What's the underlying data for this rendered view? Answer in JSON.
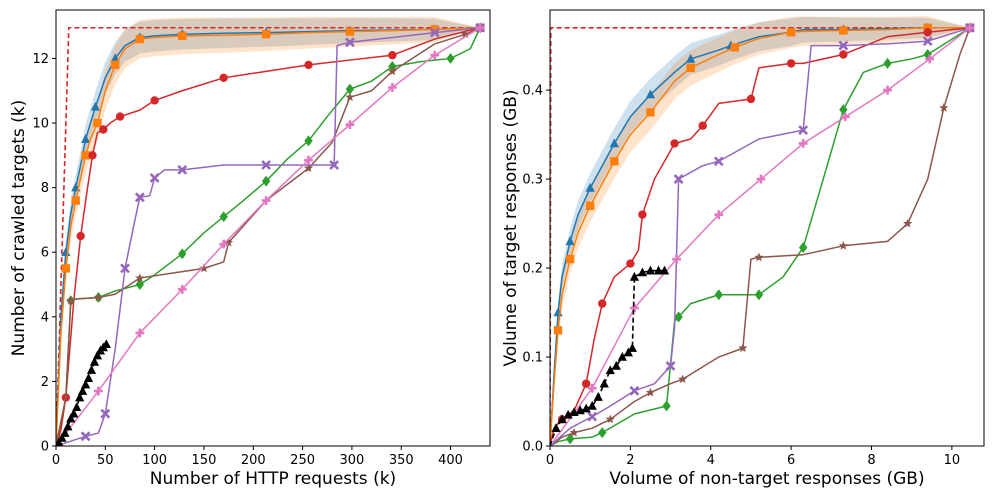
{
  "chart_data": [
    {
      "type": "line",
      "xlabel": "Number of HTTP requests (k)",
      "ylabel": "Number of crawled targets (k)",
      "xlim": [
        0,
        440
      ],
      "ylim": [
        0,
        13.5
      ],
      "xticks": [
        "0",
        "50",
        "100",
        "150",
        "200",
        "250",
        "300",
        "350",
        "400"
      ],
      "xtick_values": [
        0,
        50,
        100,
        150,
        200,
        250,
        300,
        350,
        400
      ],
      "yticks": [
        "0",
        "2",
        "4",
        "6",
        "8",
        "10",
        "12"
      ],
      "ytick_values": [
        0,
        2,
        4,
        6,
        8,
        10,
        12
      ],
      "grid": false,
      "series": [
        {
          "color": "#d62728",
          "style": "dashed",
          "marker": "none",
          "x": [
            0,
            13,
            430
          ],
          "y": [
            0,
            12.95,
            12.95
          ]
        },
        {
          "color": "#1f77b4",
          "style": "solid",
          "marker": "triangle-up",
          "band": [
            0.3,
            0.5
          ],
          "x": [
            0,
            5,
            10,
            15,
            20,
            25,
            30,
            35,
            40,
            50,
            60,
            70,
            85,
            100,
            128,
            170,
            213,
            256,
            298,
            341,
            384,
            430
          ],
          "y": [
            0,
            4.0,
            6.0,
            7.2,
            8.0,
            8.7,
            9.5,
            10.0,
            10.5,
            11.4,
            12.0,
            12.4,
            12.65,
            12.7,
            12.75,
            12.78,
            12.8,
            12.83,
            12.86,
            12.88,
            12.9,
            12.95
          ]
        },
        {
          "color": "#ff7f0e",
          "style": "solid",
          "marker": "square",
          "band": [
            0.35,
            0.6
          ],
          "x": [
            0,
            5,
            10,
            15,
            20,
            25,
            30,
            35,
            42,
            50,
            60,
            70,
            85,
            100,
            128,
            170,
            213,
            256,
            298,
            341,
            384,
            430
          ],
          "y": [
            0,
            3.5,
            5.5,
            6.8,
            7.6,
            8.3,
            9.0,
            9.5,
            10.0,
            11.0,
            11.8,
            12.3,
            12.6,
            12.65,
            12.7,
            12.72,
            12.75,
            12.8,
            12.83,
            12.86,
            12.9,
            12.95
          ]
        },
        {
          "color": "#d62728",
          "style": "solid",
          "marker": "circle",
          "x": [
            0,
            5,
            10,
            18,
            25,
            32,
            37,
            42,
            48,
            55,
            65,
            85,
            100,
            128,
            170,
            213,
            256,
            298,
            341,
            384,
            430
          ],
          "y": [
            0,
            0.5,
            1.5,
            4.5,
            6.5,
            8.0,
            9.0,
            9.7,
            9.8,
            10.0,
            10.2,
            10.4,
            10.7,
            11.0,
            11.4,
            11.6,
            11.8,
            11.95,
            12.1,
            12.6,
            12.95
          ]
        },
        {
          "color": "#2ca02c",
          "style": "solid",
          "marker": "diamond",
          "x": [
            0,
            10,
            15,
            20,
            43,
            60,
            85,
            100,
            128,
            150,
            170,
            190,
            213,
            235,
            256,
            275,
            298,
            320,
            341,
            370,
            400,
            420,
            430
          ],
          "y": [
            0,
            1.5,
            4.5,
            4.55,
            4.6,
            4.8,
            5.0,
            5.3,
            5.95,
            6.6,
            7.1,
            7.6,
            8.2,
            8.9,
            9.45,
            10.2,
            11.05,
            11.3,
            11.75,
            11.9,
            12.0,
            12.3,
            12.95
          ]
        },
        {
          "color": "#8c564b",
          "style": "solid",
          "marker": "star",
          "x": [
            0,
            10,
            15,
            20,
            43,
            60,
            85,
            128,
            150,
            170,
            175,
            213,
            256,
            280,
            298,
            320,
            341,
            384,
            415,
            430
          ],
          "y": [
            0,
            1.5,
            4.5,
            4.55,
            4.6,
            4.7,
            5.2,
            5.4,
            5.5,
            5.7,
            6.3,
            7.6,
            8.6,
            9.4,
            10.8,
            11.0,
            11.6,
            12.45,
            12.75,
            12.95
          ]
        },
        {
          "color": "#9467bd",
          "style": "solid",
          "marker": "x",
          "x": [
            0,
            20,
            30,
            43,
            50,
            60,
            70,
            80,
            85,
            95,
            100,
            110,
            128,
            170,
            213,
            256,
            282,
            285,
            298,
            341,
            384,
            430
          ],
          "y": [
            0,
            0.2,
            0.3,
            0.4,
            1.0,
            3.0,
            5.5,
            7.0,
            7.7,
            7.75,
            8.3,
            8.55,
            8.55,
            8.7,
            8.7,
            8.7,
            8.7,
            12.4,
            12.5,
            12.65,
            12.8,
            12.95
          ]
        },
        {
          "color": "#e377c2",
          "style": "solid",
          "marker": "plus",
          "x": [
            0,
            43,
            85,
            128,
            170,
            213,
            256,
            298,
            341,
            384,
            430
          ],
          "y": [
            0,
            1.7,
            3.5,
            4.85,
            6.25,
            7.6,
            8.85,
            9.95,
            11.1,
            12.1,
            12.95
          ]
        },
        {
          "color": "#000000",
          "style": "dashed",
          "marker": "triangle-up",
          "x": [
            0,
            3,
            6,
            9,
            12,
            15,
            18,
            21,
            24,
            27,
            30,
            33,
            36,
            39,
            42,
            45,
            48,
            51
          ],
          "y": [
            0,
            0.1,
            0.25,
            0.4,
            0.6,
            0.85,
            1.0,
            1.2,
            1.5,
            1.7,
            1.9,
            2.1,
            2.35,
            2.6,
            2.8,
            2.95,
            3.05,
            3.15
          ]
        }
      ]
    },
    {
      "type": "line",
      "xlabel": "Volume of non-target responses (GB)",
      "ylabel": "Volume of target responses (GB)",
      "xlim": [
        0,
        10.8
      ],
      "ylim": [
        0,
        0.49
      ],
      "xticks": [
        "0",
        "2",
        "4",
        "6",
        "8",
        "10"
      ],
      "xtick_values": [
        0,
        2,
        4,
        6,
        8,
        10
      ],
      "yticks": [
        "0.0",
        "0.1",
        "0.2",
        "0.3",
        "0.4"
      ],
      "ytick_values": [
        0,
        0.1,
        0.2,
        0.3,
        0.4
      ],
      "grid": false,
      "series": [
        {
          "color": "#d62728",
          "style": "dashed",
          "marker": "none",
          "x": [
            0,
            0.02,
            10.45
          ],
          "y": [
            0,
            0.47,
            0.47
          ]
        },
        {
          "color": "#1f77b4",
          "style": "solid",
          "marker": "triangle-up",
          "band": [
            0.01,
            0.018
          ],
          "x": [
            0,
            0.1,
            0.2,
            0.3,
            0.5,
            0.7,
            1.0,
            1.3,
            1.6,
            2.0,
            2.5,
            3.1,
            3.5,
            4.2,
            4.5,
            5.2,
            6.0,
            6.3,
            7.3,
            8.4,
            9.4,
            10.45
          ],
          "y": [
            0,
            0.08,
            0.15,
            0.19,
            0.23,
            0.26,
            0.29,
            0.315,
            0.34,
            0.37,
            0.395,
            0.42,
            0.435,
            0.445,
            0.45,
            0.46,
            0.465,
            0.468,
            0.468,
            0.469,
            0.47,
            0.47
          ]
        },
        {
          "color": "#ff7f0e",
          "style": "solid",
          "marker": "square",
          "band": [
            0.012,
            0.02
          ],
          "x": [
            0,
            0.1,
            0.2,
            0.3,
            0.5,
            0.7,
            1.0,
            1.3,
            1.6,
            2.0,
            2.5,
            3.1,
            3.5,
            4.2,
            4.6,
            5.2,
            6.0,
            6.3,
            7.3,
            8.4,
            9.4,
            10.45
          ],
          "y": [
            0,
            0.07,
            0.13,
            0.17,
            0.21,
            0.24,
            0.27,
            0.295,
            0.32,
            0.35,
            0.375,
            0.41,
            0.425,
            0.44,
            0.448,
            0.458,
            0.465,
            0.466,
            0.467,
            0.468,
            0.47,
            0.47
          ]
        },
        {
          "color": "#d62728",
          "style": "solid",
          "marker": "circle",
          "x": [
            0,
            0.1,
            0.3,
            0.6,
            0.9,
            1.1,
            1.3,
            1.6,
            2.0,
            2.2,
            2.3,
            2.6,
            3.1,
            3.5,
            3.8,
            4.2,
            5.0,
            5.2,
            6.0,
            6.3,
            7.3,
            8.4,
            9.4,
            10.45
          ],
          "y": [
            0,
            0.02,
            0.03,
            0.04,
            0.07,
            0.12,
            0.16,
            0.19,
            0.205,
            0.22,
            0.26,
            0.3,
            0.34,
            0.345,
            0.36,
            0.385,
            0.39,
            0.425,
            0.43,
            0.43,
            0.44,
            0.46,
            0.465,
            0.47
          ]
        },
        {
          "color": "#2ca02c",
          "style": "solid",
          "marker": "diamond",
          "x": [
            0,
            0.2,
            0.5,
            1.05,
            1.3,
            2.1,
            2.9,
            3.1,
            3.2,
            3.5,
            4.2,
            5.0,
            5.2,
            5.8,
            6.3,
            6.8,
            7.3,
            7.8,
            8.4,
            9.0,
            9.4,
            10.45
          ],
          "y": [
            0,
            0.005,
            0.008,
            0.01,
            0.015,
            0.036,
            0.045,
            0.14,
            0.145,
            0.16,
            0.17,
            0.17,
            0.17,
            0.19,
            0.223,
            0.3,
            0.378,
            0.42,
            0.43,
            0.435,
            0.44,
            0.47
          ]
        },
        {
          "color": "#8c564b",
          "style": "solid",
          "marker": "star",
          "x": [
            0,
            0.3,
            0.6,
            1.05,
            1.5,
            2.1,
            2.5,
            3.0,
            3.3,
            4.2,
            4.8,
            5.0,
            5.2,
            6.3,
            7.3,
            8.4,
            8.9,
            9.4,
            9.8,
            10.2,
            10.45
          ],
          "y": [
            0,
            0.01,
            0.015,
            0.02,
            0.03,
            0.05,
            0.06,
            0.07,
            0.075,
            0.1,
            0.11,
            0.21,
            0.212,
            0.215,
            0.225,
            0.23,
            0.25,
            0.3,
            0.38,
            0.44,
            0.47
          ]
        },
        {
          "color": "#9467bd",
          "style": "solid",
          "marker": "x",
          "x": [
            0,
            0.5,
            1.05,
            1.5,
            2.1,
            2.6,
            3.0,
            3.1,
            3.2,
            3.8,
            4.2,
            5.2,
            6.3,
            6.5,
            7.3,
            8.4,
            9.4,
            10.45
          ],
          "y": [
            0,
            0.02,
            0.033,
            0.045,
            0.062,
            0.07,
            0.09,
            0.133,
            0.3,
            0.315,
            0.32,
            0.345,
            0.355,
            0.45,
            0.45,
            0.452,
            0.455,
            0.47
          ]
        },
        {
          "color": "#e377c2",
          "style": "solid",
          "marker": "plus",
          "x": [
            0,
            1.05,
            2.1,
            3.15,
            4.2,
            5.25,
            6.3,
            7.35,
            8.4,
            9.45,
            10.45
          ],
          "y": [
            0,
            0.065,
            0.155,
            0.21,
            0.26,
            0.3,
            0.34,
            0.37,
            0.4,
            0.435,
            0.47
          ]
        },
        {
          "color": "#000000",
          "style": "dashed",
          "marker": "triangle-up",
          "x": [
            0,
            0.15,
            0.3,
            0.45,
            0.6,
            0.75,
            0.9,
            1.05,
            1.2,
            1.35,
            1.5,
            1.65,
            1.8,
            1.95,
            2.05,
            2.1,
            2.3,
            2.5,
            2.7,
            2.85
          ],
          "y": [
            0,
            0.02,
            0.03,
            0.035,
            0.038,
            0.04,
            0.042,
            0.045,
            0.055,
            0.07,
            0.085,
            0.09,
            0.1,
            0.105,
            0.11,
            0.19,
            0.195,
            0.197,
            0.197,
            0.197
          ]
        }
      ]
    }
  ]
}
